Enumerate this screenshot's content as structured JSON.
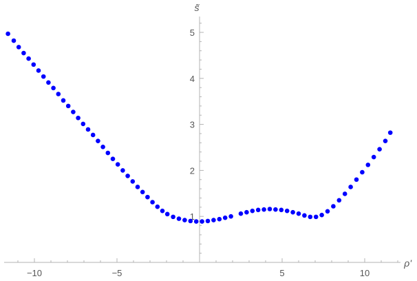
{
  "chart_data": {
    "type": "scatter",
    "title": "",
    "xlabel": "ρ'",
    "ylabel": "s̃",
    "xlim": [
      -12,
      12.5
    ],
    "ylim": [
      0,
      5.3
    ],
    "x_ticks": [
      -10,
      -5,
      5,
      10
    ],
    "x_tick_labels": [
      "−10",
      "−5",
      "5",
      "10"
    ],
    "y_ticks": [
      1,
      2,
      3,
      4,
      5
    ],
    "y_tick_labels": [
      "1",
      "2",
      "3",
      "4",
      "5"
    ],
    "grid": false,
    "colors": {
      "points": "#0000ff",
      "axis": "#b3b3b3",
      "text": "#555555"
    },
    "series": [
      {
        "points": [
          [
            -11.6,
            4.97
          ],
          [
            -11.25,
            4.82
          ],
          [
            -10.95,
            4.68
          ],
          [
            -10.65,
            4.55
          ],
          [
            -10.35,
            4.43
          ],
          [
            -10.05,
            4.3
          ],
          [
            -9.75,
            4.17
          ],
          [
            -9.45,
            4.04
          ],
          [
            -9.15,
            3.91
          ],
          [
            -8.85,
            3.79
          ],
          [
            -8.55,
            3.66
          ],
          [
            -8.25,
            3.52
          ],
          [
            -7.95,
            3.4
          ],
          [
            -7.65,
            3.27
          ],
          [
            -7.35,
            3.14
          ],
          [
            -7.05,
            3.01
          ],
          [
            -6.75,
            2.89
          ],
          [
            -6.45,
            2.77
          ],
          [
            -6.15,
            2.64
          ],
          [
            -5.85,
            2.51
          ],
          [
            -5.55,
            2.38
          ],
          [
            -5.25,
            2.25
          ],
          [
            -4.95,
            2.13
          ],
          [
            -4.65,
            2.0
          ],
          [
            -4.35,
            1.88
          ],
          [
            -4.05,
            1.76
          ],
          [
            -3.75,
            1.64
          ],
          [
            -3.45,
            1.53
          ],
          [
            -3.15,
            1.42
          ],
          [
            -2.85,
            1.31
          ],
          [
            -2.55,
            1.21
          ],
          [
            -2.25,
            1.12
          ],
          [
            -1.95,
            1.05
          ],
          [
            -1.6,
            0.99
          ],
          [
            -1.25,
            0.95
          ],
          [
            -0.9,
            0.92
          ],
          [
            -0.55,
            0.9
          ],
          [
            -0.2,
            0.89
          ],
          [
            0.15,
            0.89
          ],
          [
            0.5,
            0.9
          ],
          [
            0.85,
            0.92
          ],
          [
            1.2,
            0.94
          ],
          [
            1.55,
            0.97
          ],
          [
            1.9,
            1.0
          ],
          [
            2.5,
            1.06
          ],
          [
            2.85,
            1.09
          ],
          [
            3.2,
            1.12
          ],
          [
            3.55,
            1.14
          ],
          [
            3.9,
            1.15
          ],
          [
            4.25,
            1.16
          ],
          [
            4.6,
            1.15
          ],
          [
            4.95,
            1.14
          ],
          [
            5.3,
            1.12
          ],
          [
            5.65,
            1.09
          ],
          [
            6.0,
            1.06
          ],
          [
            6.35,
            1.02
          ],
          [
            6.7,
            0.99
          ],
          [
            7.05,
            0.99
          ],
          [
            7.4,
            1.03
          ],
          [
            7.75,
            1.11
          ],
          [
            8.1,
            1.22
          ],
          [
            8.45,
            1.35
          ],
          [
            8.8,
            1.49
          ],
          [
            9.15,
            1.64
          ],
          [
            9.5,
            1.8
          ],
          [
            9.85,
            1.96
          ],
          [
            10.2,
            2.12
          ],
          [
            10.55,
            2.29
          ],
          [
            10.9,
            2.46
          ],
          [
            11.25,
            2.64
          ],
          [
            11.55,
            2.82
          ]
        ]
      }
    ]
  }
}
